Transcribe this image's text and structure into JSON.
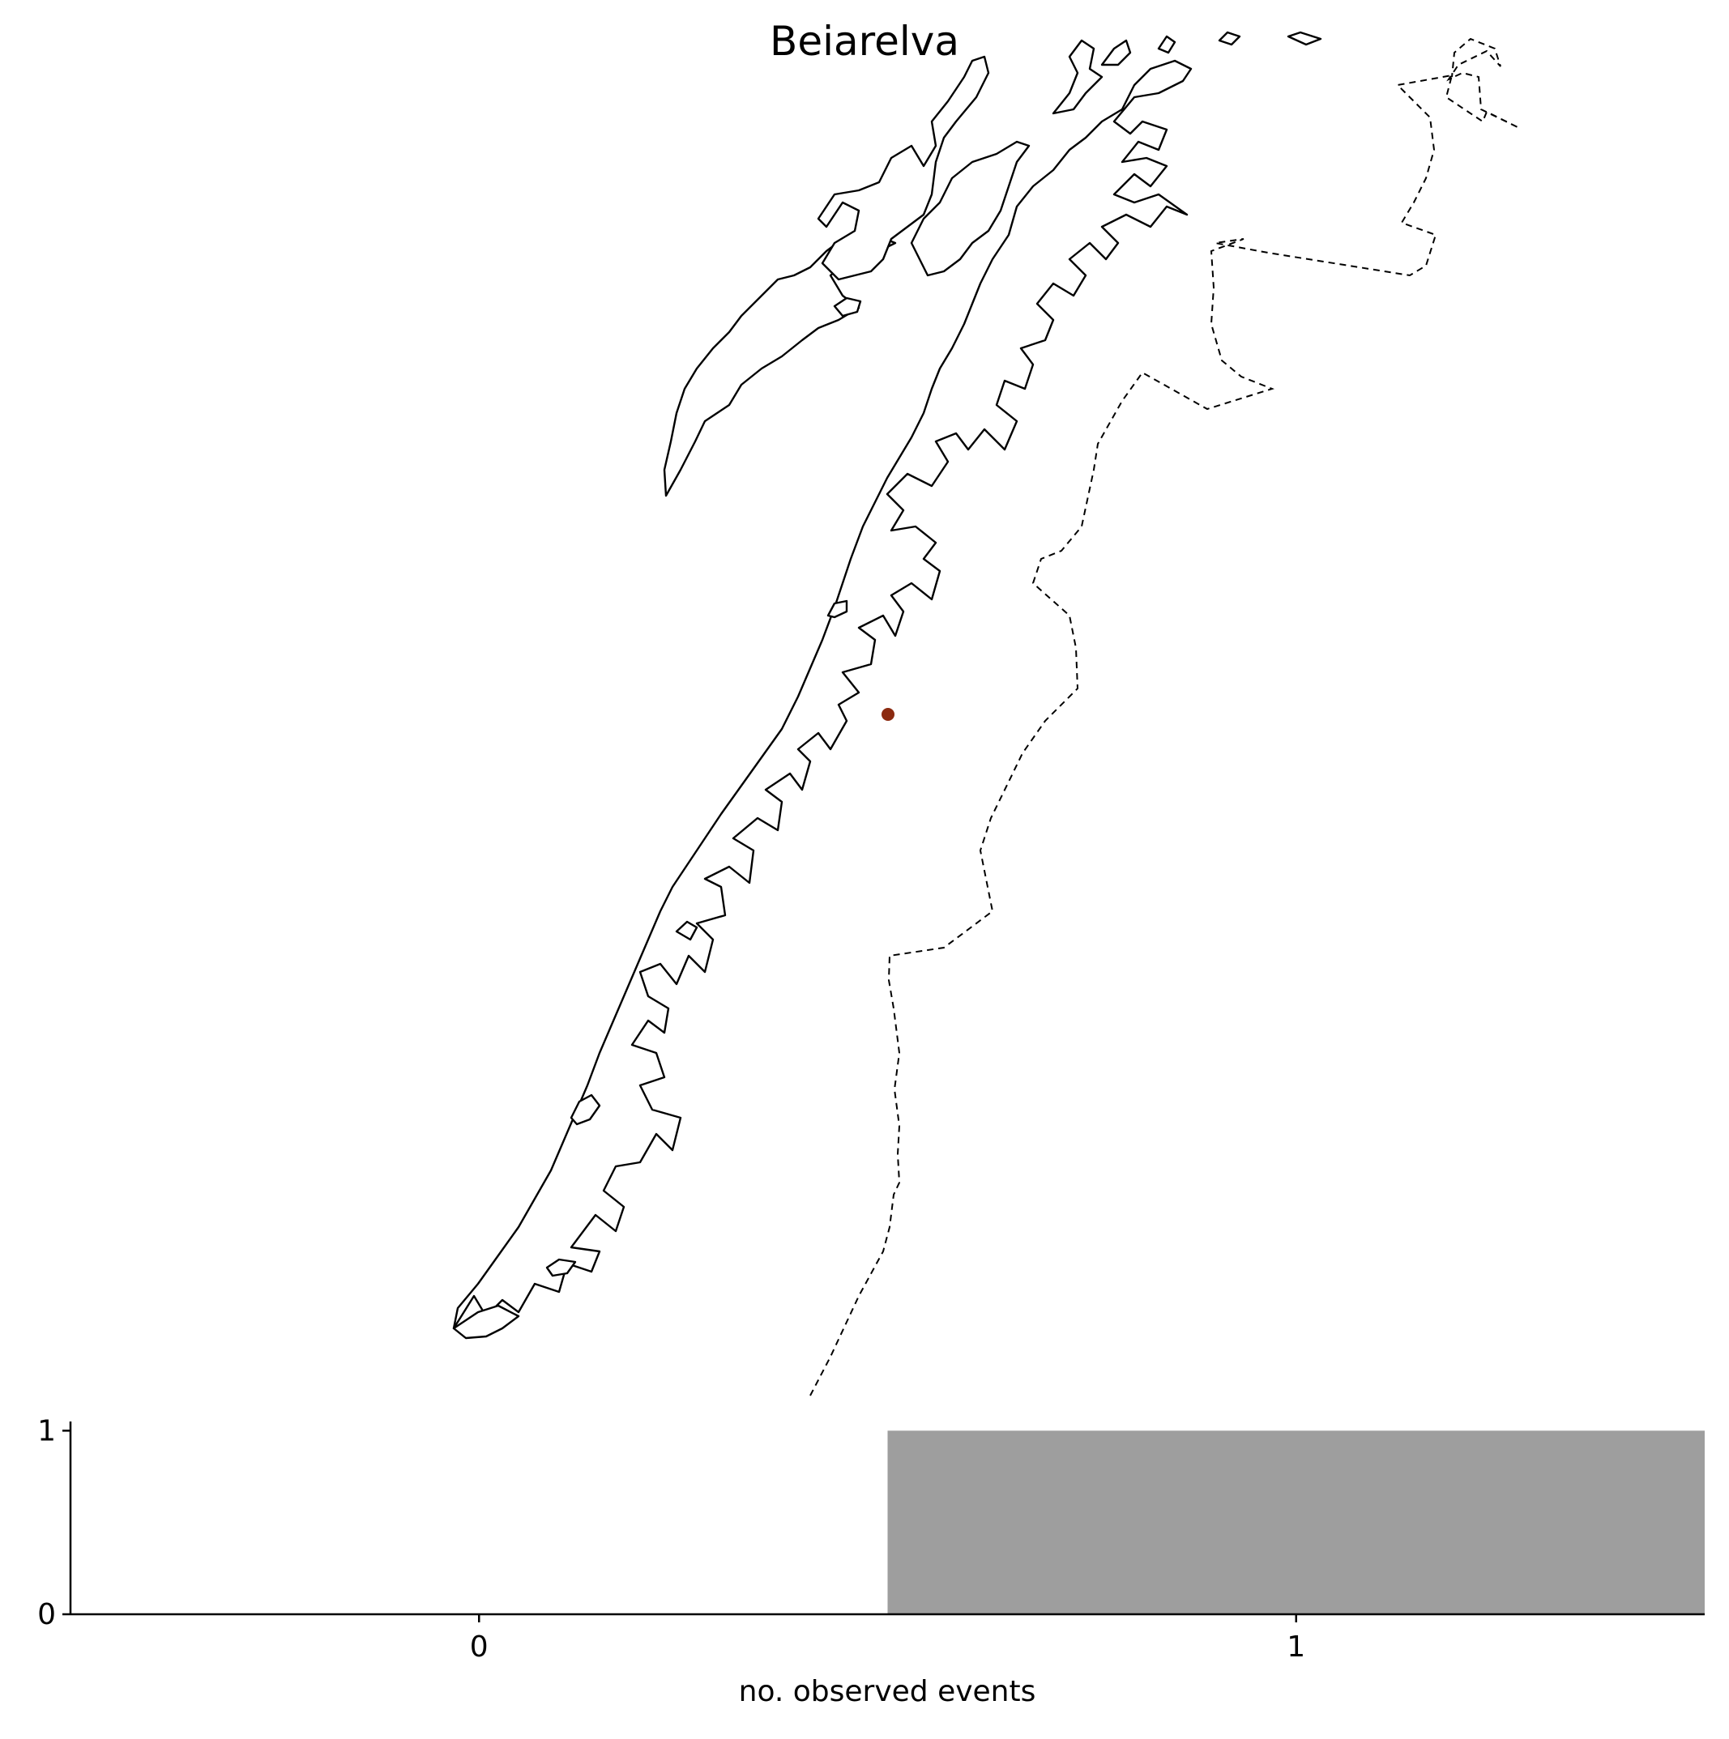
{
  "map": {
    "title": "Beiarelva",
    "station": {
      "name": "Beiarelva",
      "color": "#8b2a10"
    },
    "layers": [
      "coastline",
      "national-border"
    ]
  },
  "chart_data": {
    "type": "bar",
    "title": "",
    "xlabel": "no. observed events",
    "ylabel": "",
    "categories": [
      "0",
      "1"
    ],
    "values": [
      0,
      1
    ],
    "bar_color": "#9e9e9e",
    "x_ticks": [
      "0",
      "1"
    ],
    "y_ticks": [
      "0",
      "1"
    ],
    "xlim": [
      -0.5,
      1.5
    ],
    "ylim": [
      0,
      1.05
    ],
    "grid": false
  }
}
